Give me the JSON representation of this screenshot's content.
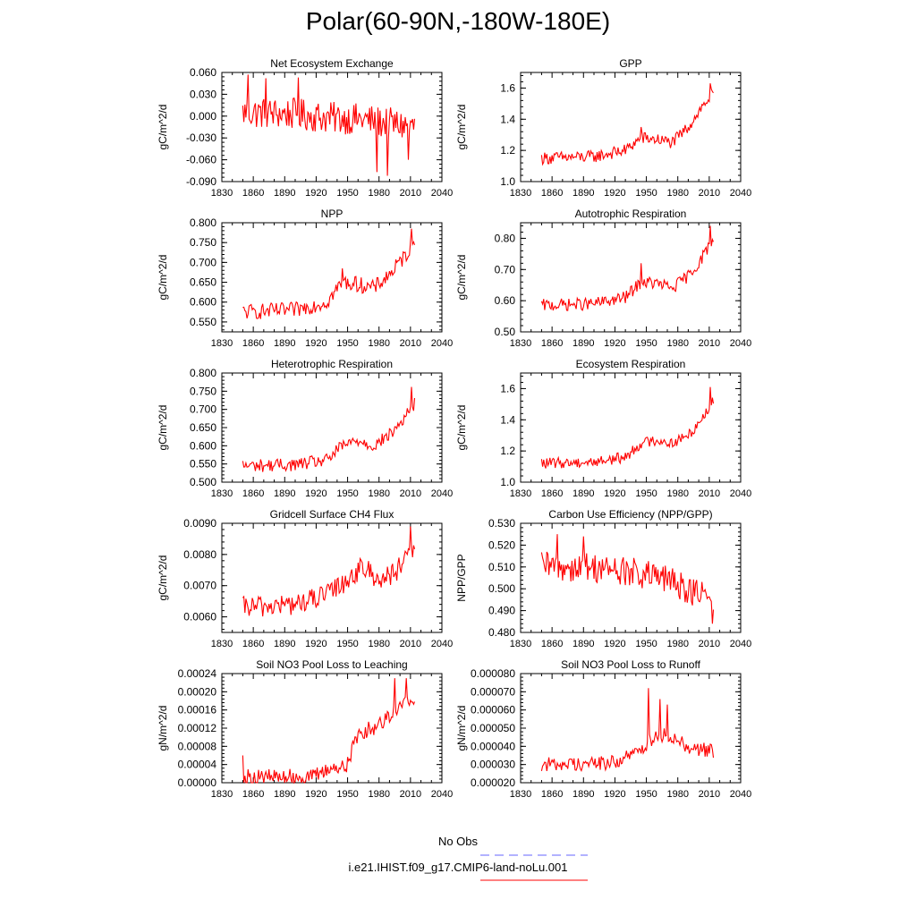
{
  "page": {
    "title": "Polar(60-90N,-180W-180E)"
  },
  "legend": {
    "entries": [
      {
        "label": "No Obs",
        "color": "#6666ff",
        "dashed": true
      },
      {
        "label": "i.e21.IHIST.f09_g17.CMIP6-land-noLu.001",
        "color": "#ff0000",
        "dashed": false
      }
    ]
  },
  "chart_data": [
    {
      "type": "line",
      "title": "Net Ecosystem Exchange",
      "ylabel": "gC/m^2/d",
      "xlabel": "",
      "xlim": [
        1830,
        2040
      ],
      "ylim": [
        -0.09,
        0.06
      ],
      "xticks": [
        1830,
        1860,
        1890,
        1920,
        1950,
        1980,
        2010,
        2040
      ],
      "yticks": [
        "-0.090",
        "-0.060",
        "-0.030",
        "0.000",
        "0.030",
        "0.060"
      ],
      "series": [
        {
          "color": "#ff0000",
          "x_start": 1850,
          "x_end": 2014,
          "trend": [
            [
              1850,
              0.005
            ],
            [
              1900,
              0.003
            ],
            [
              1930,
              -0.002
            ],
            [
              1960,
              -0.004
            ],
            [
              1990,
              -0.01
            ],
            [
              2014,
              -0.015
            ]
          ],
          "noise": 0.022,
          "spikes": [
            [
              1855,
              0.057
            ],
            [
              1872,
              0.052
            ],
            [
              1903,
              0.053
            ],
            [
              1978,
              -0.077
            ],
            [
              1988,
              -0.082
            ],
            [
              2008,
              -0.06
            ]
          ]
        }
      ]
    },
    {
      "type": "line",
      "title": "GPP",
      "ylabel": "gC/m^2/d",
      "xlabel": "",
      "xlim": [
        1830,
        2040
      ],
      "ylim": [
        1.0,
        1.7
      ],
      "xticks": [
        1830,
        1860,
        1890,
        1920,
        1950,
        1980,
        2010,
        2040
      ],
      "yticks": [
        "1.0",
        "1.2",
        "1.4",
        "1.6"
      ],
      "series": [
        {
          "color": "#ff0000",
          "x_start": 1850,
          "x_end": 2014,
          "trend": [
            [
              1850,
              1.15
            ],
            [
              1900,
              1.16
            ],
            [
              1930,
              1.2
            ],
            [
              1945,
              1.28
            ],
            [
              1960,
              1.27
            ],
            [
              1975,
              1.25
            ],
            [
              1990,
              1.35
            ],
            [
              2000,
              1.45
            ],
            [
              2014,
              1.57
            ]
          ],
          "noise": 0.04,
          "spikes": [
            [
              1945,
              1.35
            ],
            [
              2011,
              1.63
            ]
          ]
        }
      ]
    },
    {
      "type": "line",
      "title": "NPP",
      "ylabel": "gC/m^2/d",
      "xlabel": "",
      "xlim": [
        1830,
        2040
      ],
      "ylim": [
        0.525,
        0.8
      ],
      "xticks": [
        1830,
        1860,
        1890,
        1920,
        1950,
        1980,
        2010,
        2040
      ],
      "yticks": [
        "0.550",
        "0.600",
        "0.650",
        "0.700",
        "0.750",
        "0.800"
      ],
      "series": [
        {
          "color": "#ff0000",
          "x_start": 1850,
          "x_end": 2014,
          "trend": [
            [
              1850,
              0.575
            ],
            [
              1900,
              0.58
            ],
            [
              1930,
              0.6
            ],
            [
              1945,
              0.65
            ],
            [
              1960,
              0.645
            ],
            [
              1975,
              0.635
            ],
            [
              1990,
              0.67
            ],
            [
              2000,
              0.7
            ],
            [
              2014,
              0.75
            ]
          ],
          "noise": 0.02,
          "spikes": [
            [
              1945,
              0.685
            ],
            [
              2011,
              0.785
            ]
          ]
        }
      ]
    },
    {
      "type": "line",
      "title": "Autotrophic Respiration",
      "ylabel": "gC/m^2/d",
      "xlabel": "",
      "xlim": [
        1830,
        2040
      ],
      "ylim": [
        0.5,
        0.85
      ],
      "xticks": [
        1830,
        1860,
        1890,
        1920,
        1950,
        1980,
        2010,
        2040
      ],
      "yticks": [
        "0.50",
        "0.60",
        "0.70",
        "0.80"
      ],
      "series": [
        {
          "color": "#ff0000",
          "x_start": 1850,
          "x_end": 2014,
          "trend": [
            [
              1850,
              0.585
            ],
            [
              1900,
              0.59
            ],
            [
              1930,
              0.61
            ],
            [
              1945,
              0.66
            ],
            [
              1960,
              0.655
            ],
            [
              1975,
              0.64
            ],
            [
              1990,
              0.68
            ],
            [
              2000,
              0.72
            ],
            [
              2014,
              0.8
            ]
          ],
          "noise": 0.02,
          "spikes": [
            [
              1945,
              0.72
            ],
            [
              2011,
              0.84
            ]
          ]
        }
      ]
    },
    {
      "type": "line",
      "title": "Heterotrophic Respiration",
      "ylabel": "gC/m^2/d",
      "xlabel": "",
      "xlim": [
        1830,
        2040
      ],
      "ylim": [
        0.5,
        0.8
      ],
      "xticks": [
        1830,
        1860,
        1890,
        1920,
        1950,
        1980,
        2010,
        2040
      ],
      "yticks": [
        "0.500",
        "0.550",
        "0.600",
        "0.650",
        "0.700",
        "0.750",
        "0.800"
      ],
      "series": [
        {
          "color": "#ff0000",
          "x_start": 1850,
          "x_end": 2014,
          "trend": [
            [
              1850,
              0.545
            ],
            [
              1900,
              0.548
            ],
            [
              1930,
              0.56
            ],
            [
              1945,
              0.6
            ],
            [
              1960,
              0.615
            ],
            [
              1975,
              0.6
            ],
            [
              1990,
              0.63
            ],
            [
              2000,
              0.66
            ],
            [
              2014,
              0.715
            ]
          ],
          "noise": 0.018,
          "spikes": [
            [
              2011,
              0.762
            ]
          ]
        }
      ]
    },
    {
      "type": "line",
      "title": "Ecosystem Respiration",
      "ylabel": "gC/m^2/d",
      "xlabel": "",
      "xlim": [
        1830,
        2040
      ],
      "ylim": [
        1.0,
        1.7
      ],
      "xticks": [
        1830,
        1860,
        1890,
        1920,
        1950,
        1980,
        2010,
        2040
      ],
      "yticks": [
        "1.0",
        "1.2",
        "1.4",
        "1.6"
      ],
      "series": [
        {
          "color": "#ff0000",
          "x_start": 1850,
          "x_end": 2014,
          "trend": [
            [
              1850,
              1.12
            ],
            [
              1900,
              1.13
            ],
            [
              1930,
              1.16
            ],
            [
              1945,
              1.25
            ],
            [
              1960,
              1.27
            ],
            [
              1975,
              1.25
            ],
            [
              1990,
              1.3
            ],
            [
              2000,
              1.38
            ],
            [
              2014,
              1.52
            ]
          ],
          "noise": 0.035,
          "spikes": [
            [
              2011,
              1.61
            ]
          ]
        }
      ]
    },
    {
      "type": "line",
      "title": "Gridcell Surface CH4 Flux",
      "ylabel": "gC/m^2/d",
      "xlabel": "",
      "xlim": [
        1830,
        2040
      ],
      "ylim": [
        0.0055,
        0.009
      ],
      "xticks": [
        1830,
        1860,
        1890,
        1920,
        1950,
        1980,
        2010,
        2040
      ],
      "yticks": [
        "0.0060",
        "0.0070",
        "0.0080",
        "0.0090"
      ],
      "series": [
        {
          "color": "#ff0000",
          "x_start": 1850,
          "x_end": 2014,
          "trend": [
            [
              1850,
              0.0063
            ],
            [
              1900,
              0.0064
            ],
            [
              1930,
              0.0067
            ],
            [
              1950,
              0.0072
            ],
            [
              1965,
              0.0076
            ],
            [
              1980,
              0.0072
            ],
            [
              1995,
              0.0074
            ],
            [
              2005,
              0.0078
            ],
            [
              2014,
              0.0081
            ]
          ],
          "noise": 0.00035,
          "spikes": [
            [
              2010,
              0.0089
            ]
          ]
        }
      ]
    },
    {
      "type": "line",
      "title": "Carbon Use Efficiency (NPP/GPP)",
      "ylabel": "NPP/GPP",
      "xlabel": "",
      "xlim": [
        1830,
        2040
      ],
      "ylim": [
        0.48,
        0.53
      ],
      "xticks": [
        1830,
        1860,
        1890,
        1920,
        1950,
        1980,
        2010,
        2040
      ],
      "yticks": [
        "0.480",
        "0.490",
        "0.500",
        "0.510",
        "0.520",
        "0.530"
      ],
      "series": [
        {
          "color": "#ff0000",
          "x_start": 1850,
          "x_end": 2014,
          "trend": [
            [
              1850,
              0.51
            ],
            [
              1900,
              0.51
            ],
            [
              1940,
              0.507
            ],
            [
              1970,
              0.504
            ],
            [
              1990,
              0.5
            ],
            [
              2014,
              0.494
            ]
          ],
          "noise": 0.007,
          "spikes": [
            [
              1865,
              0.525
            ],
            [
              1890,
              0.524
            ],
            [
              2013,
              0.484
            ]
          ]
        }
      ]
    },
    {
      "type": "line",
      "title": "Soil NO3 Pool Loss to Leaching",
      "ylabel": "gN/m^2/d",
      "xlabel": "",
      "xlim": [
        1830,
        2040
      ],
      "ylim": [
        0.0,
        0.00024
      ],
      "xticks": [
        1830,
        1860,
        1890,
        1920,
        1950,
        1980,
        2010,
        2040
      ],
      "yticks": [
        "0.00000",
        "0.00004",
        "0.00008",
        "0.00012",
        "0.00016",
        "0.00020",
        "0.00024"
      ],
      "series": [
        {
          "color": "#ff0000",
          "x_start": 1850,
          "x_end": 2014,
          "trend": [
            [
              1850,
              1.2e-05
            ],
            [
              1919,
              1.3e-05
            ],
            [
              1925,
              2.5e-05
            ],
            [
              1950,
              4e-05
            ],
            [
              1960,
              0.00011
            ],
            [
              1975,
              0.00012
            ],
            [
              1990,
              0.00015
            ],
            [
              2014,
              0.00019
            ]
          ],
          "noise": 1.8e-05,
          "spikes": [
            [
              1850,
              6e-05
            ],
            [
              1995,
              0.00023
            ],
            [
              2006,
              0.00023
            ]
          ]
        }
      ]
    },
    {
      "type": "line",
      "title": "Soil NO3 Pool Loss to Runoff",
      "ylabel": "gN/m^2/d",
      "xlabel": "",
      "xlim": [
        1830,
        2040
      ],
      "ylim": [
        2e-05,
        8e-05
      ],
      "xticks": [
        1830,
        1860,
        1890,
        1920,
        1950,
        1980,
        2010,
        2040
      ],
      "yticks": [
        "0.000020",
        "0.000030",
        "0.000040",
        "0.000050",
        "0.000060",
        "0.000070",
        "0.000080"
      ],
      "series": [
        {
          "color": "#ff0000",
          "x_start": 1850,
          "x_end": 2014,
          "trend": [
            [
              1850,
              3e-05
            ],
            [
              1920,
              3.1e-05
            ],
            [
              1945,
              3.8e-05
            ],
            [
              1960,
              4.7e-05
            ],
            [
              1975,
              4.5e-05
            ],
            [
              1990,
              4e-05
            ],
            [
              2014,
              3.7e-05
            ]
          ],
          "noise": 4e-06,
          "spikes": [
            [
              1952,
              7.2e-05
            ],
            [
              1963,
              6.6e-05
            ],
            [
              1970,
              6.3e-05
            ]
          ]
        }
      ]
    }
  ]
}
